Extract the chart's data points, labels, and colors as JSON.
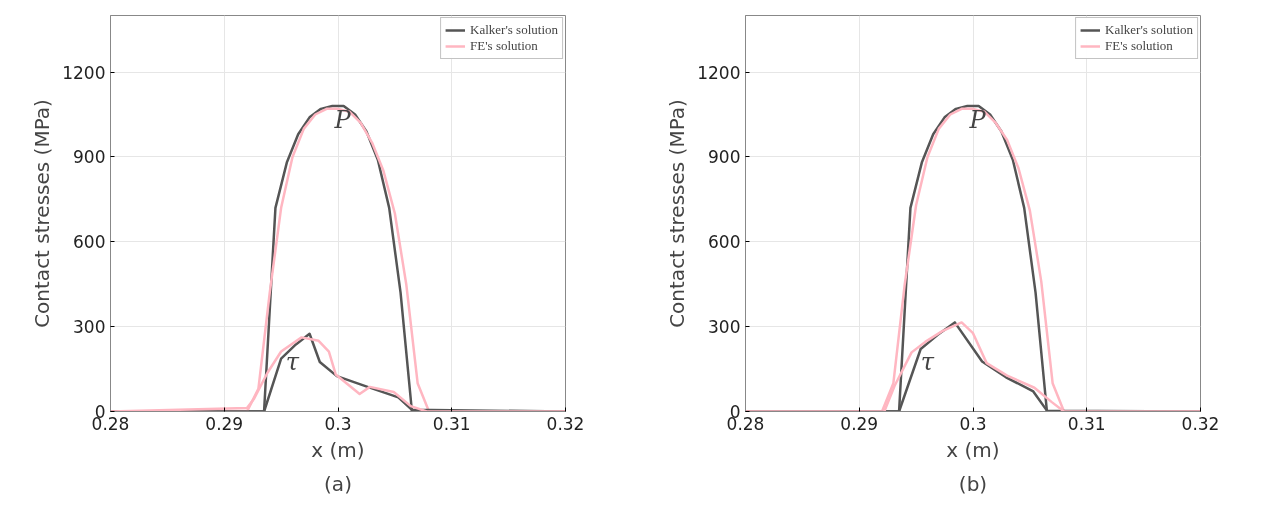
{
  "chart_data": [
    {
      "type": "line",
      "xlabel": "x (m)",
      "ylabel": "Contact stresses (MPa)",
      "xlim": [
        0.28,
        0.32
      ],
      "ylim": [
        0,
        1400
      ],
      "xticks": [
        0.28,
        0.29,
        0.3,
        0.31,
        0.32
      ],
      "yticks": [
        0,
        300,
        600,
        900,
        1200
      ],
      "grid": true,
      "legend": "top right",
      "annotations": [
        "P",
        "τ",
        "(a)"
      ],
      "series": [
        {
          "name": "Kalker's solution",
          "color": "#555555",
          "x": [
            0.28,
            0.2935,
            0.2945,
            0.2955,
            0.2965,
            0.2975,
            0.2985,
            0.2995,
            0.3005,
            0.3015,
            0.3025,
            0.3035,
            0.3045,
            0.3055,
            0.3065,
            0.32
          ],
          "values": [
            0,
            0,
            720,
            880,
            980,
            1040,
            1070,
            1080,
            1080,
            1050,
            990,
            890,
            720,
            420,
            0,
            0
          ]
        },
        {
          "name": "FE's solution",
          "color": "#ffb6c1",
          "x": [
            0.28,
            0.292,
            0.293,
            0.294,
            0.295,
            0.296,
            0.297,
            0.298,
            0.299,
            0.3,
            0.301,
            0.302,
            0.303,
            0.304,
            0.305,
            0.306,
            0.307,
            0.308,
            0.32
          ],
          "values": [
            0,
            0,
            80,
            420,
            720,
            900,
            1000,
            1050,
            1070,
            1070,
            1060,
            1020,
            950,
            850,
            700,
            450,
            100,
            0,
            0
          ]
        },
        {
          "color": "#555555",
          "x": [
            0.28,
            0.2935,
            0.295,
            0.2963,
            0.2975,
            0.2984,
            0.2999,
            0.3026,
            0.3053,
            0.3065,
            0.32
          ],
          "values": [
            0,
            0,
            187,
            237,
            275,
            175,
            125,
            87,
            50,
            6,
            0
          ]
        },
        {
          "color": "#ffb6c1",
          "x": [
            0.28,
            0.292,
            0.2926,
            0.2938,
            0.295,
            0.2968,
            0.2983,
            0.2992,
            0.2998,
            0.3019,
            0.3028,
            0.3049,
            0.3064,
            0.3078,
            0.32
          ],
          "values": [
            0,
            12,
            44,
            137,
            212,
            262,
            250,
            212,
            131,
            62,
            87,
            69,
            19,
            0,
            0
          ]
        }
      ]
    },
    {
      "type": "line",
      "xlabel": "x (m)",
      "ylabel": "Contact stresses (MPa)",
      "xlim": [
        0.28,
        0.32
      ],
      "ylim": [
        0,
        1400
      ],
      "xticks": [
        0.28,
        0.29,
        0.3,
        0.31,
        0.32
      ],
      "yticks": [
        0,
        300,
        600,
        900,
        1200
      ],
      "grid": true,
      "legend": "top right",
      "annotations": [
        "P",
        "τ",
        "(b)"
      ],
      "series": [
        {
          "name": "Kalker's solution",
          "color": "#555555",
          "x": [
            0.28,
            0.2935,
            0.2945,
            0.2955,
            0.2965,
            0.2975,
            0.2985,
            0.2995,
            0.3005,
            0.3015,
            0.3025,
            0.3035,
            0.3045,
            0.3055,
            0.3065,
            0.32
          ],
          "values": [
            0,
            0,
            720,
            880,
            980,
            1040,
            1070,
            1080,
            1080,
            1050,
            990,
            890,
            720,
            420,
            0,
            0
          ]
        },
        {
          "name": "FE's solution",
          "color": "#ffb6c1",
          "x": [
            0.28,
            0.292,
            0.293,
            0.294,
            0.295,
            0.296,
            0.297,
            0.298,
            0.299,
            0.3,
            0.301,
            0.302,
            0.303,
            0.304,
            0.305,
            0.306,
            0.307,
            0.308,
            0.32
          ],
          "values": [
            0,
            0,
            100,
            450,
            730,
            900,
            1000,
            1050,
            1070,
            1070,
            1060,
            1020,
            960,
            860,
            710,
            460,
            100,
            0,
            0
          ]
        },
        {
          "color": "#555555",
          "x": [
            0.28,
            0.2935,
            0.2954,
            0.2969,
            0.2984,
            0.3008,
            0.3029,
            0.3053,
            0.3065,
            0.32
          ],
          "values": [
            0,
            0,
            221,
            271,
            315,
            177,
            121,
            71,
            3,
            0
          ]
        },
        {
          "color": "#ffb6c1",
          "x": [
            0.28,
            0.2922,
            0.2931,
            0.2946,
            0.2958,
            0.2973,
            0.299,
            0.3,
            0.3012,
            0.303,
            0.3054,
            0.3069,
            0.308,
            0.32
          ],
          "values": [
            0,
            0,
            90,
            209,
            246,
            284,
            315,
            277,
            171,
            127,
            84,
            34,
            0,
            0
          ]
        }
      ]
    }
  ]
}
